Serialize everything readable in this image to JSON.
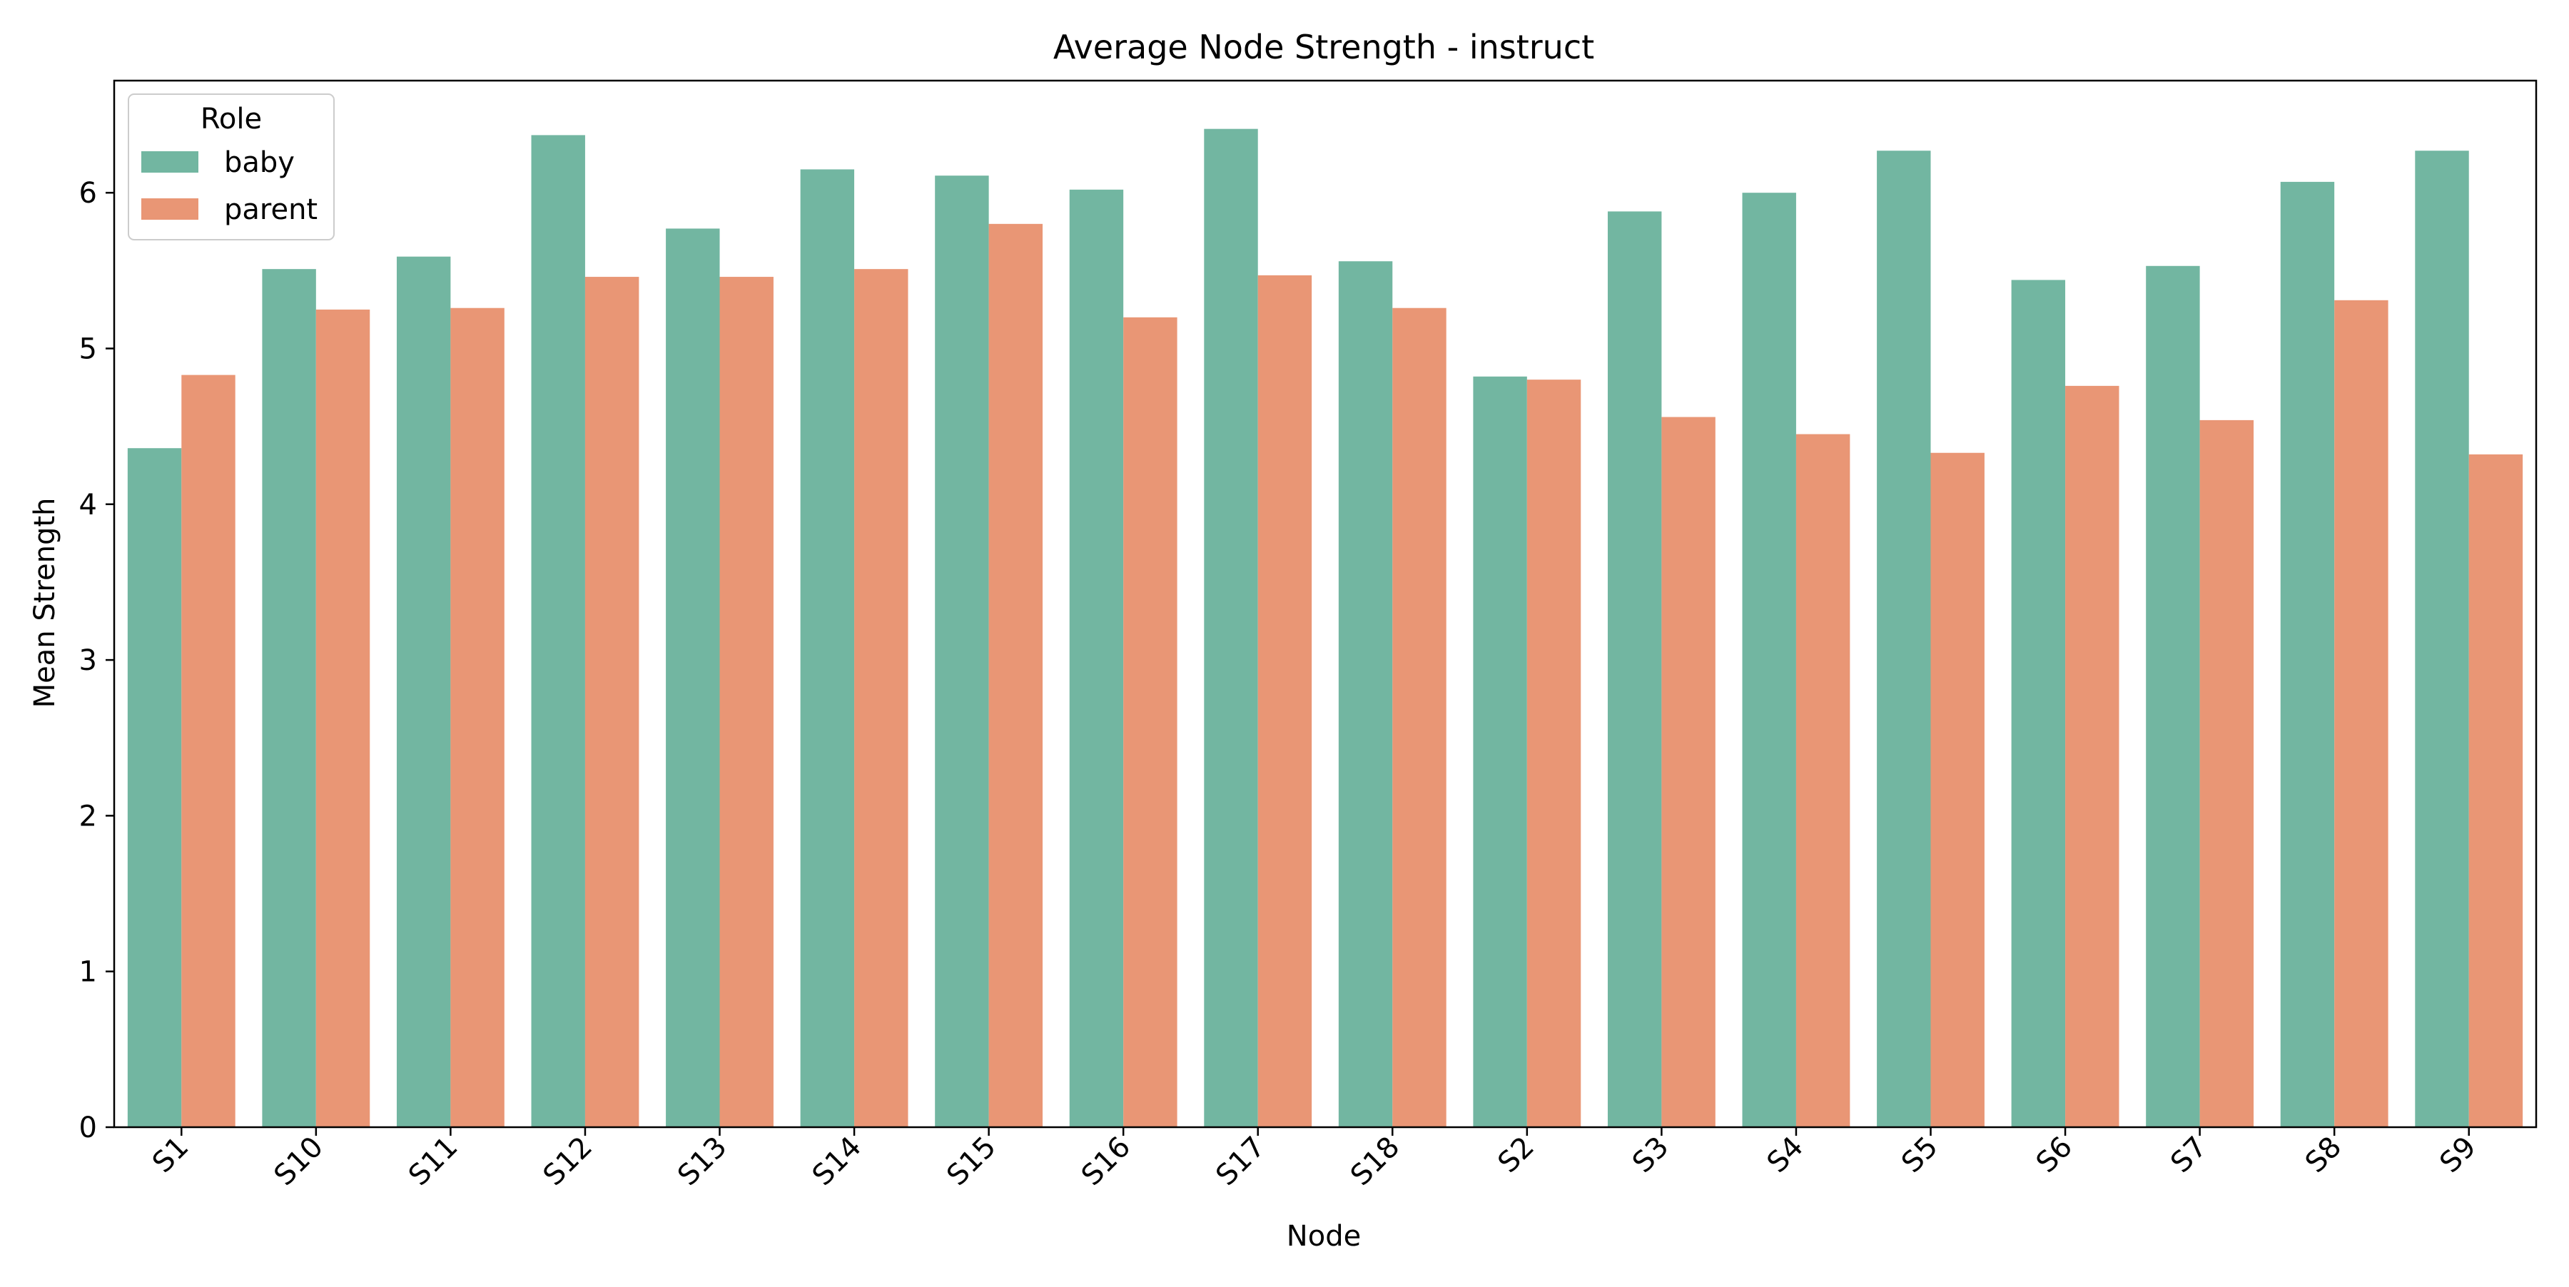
{
  "colors": {
    "baby": "#72b6a1",
    "parent": "#e99675",
    "axis": "#000000",
    "background": "#ffffff"
  },
  "chart_data": {
    "type": "bar",
    "title": "Average Node Strength - instruct",
    "xlabel": "Node",
    "ylabel": "Mean Strength",
    "categories": [
      "S1",
      "S10",
      "S11",
      "S12",
      "S13",
      "S14",
      "S15",
      "S16",
      "S17",
      "S18",
      "S2",
      "S3",
      "S4",
      "S5",
      "S6",
      "S7",
      "S8",
      "S9"
    ],
    "series": [
      {
        "name": "baby",
        "values": [
          4.36,
          5.51,
          5.59,
          6.37,
          5.77,
          6.15,
          6.11,
          6.02,
          6.41,
          5.56,
          4.82,
          5.88,
          6.0,
          6.27,
          5.44,
          5.53,
          6.07,
          6.27
        ]
      },
      {
        "name": "parent",
        "values": [
          4.83,
          5.25,
          5.26,
          5.46,
          5.46,
          5.51,
          5.8,
          5.2,
          5.47,
          5.26,
          4.8,
          4.56,
          4.45,
          4.33,
          4.76,
          4.54,
          5.31,
          4.32
        ]
      }
    ],
    "ylim": [
      0,
      6.72
    ],
    "yticks": [
      0,
      1,
      2,
      3,
      4,
      5,
      6
    ],
    "grid": false,
    "legend": {
      "title": "Role",
      "placement": "top-left"
    }
  }
}
